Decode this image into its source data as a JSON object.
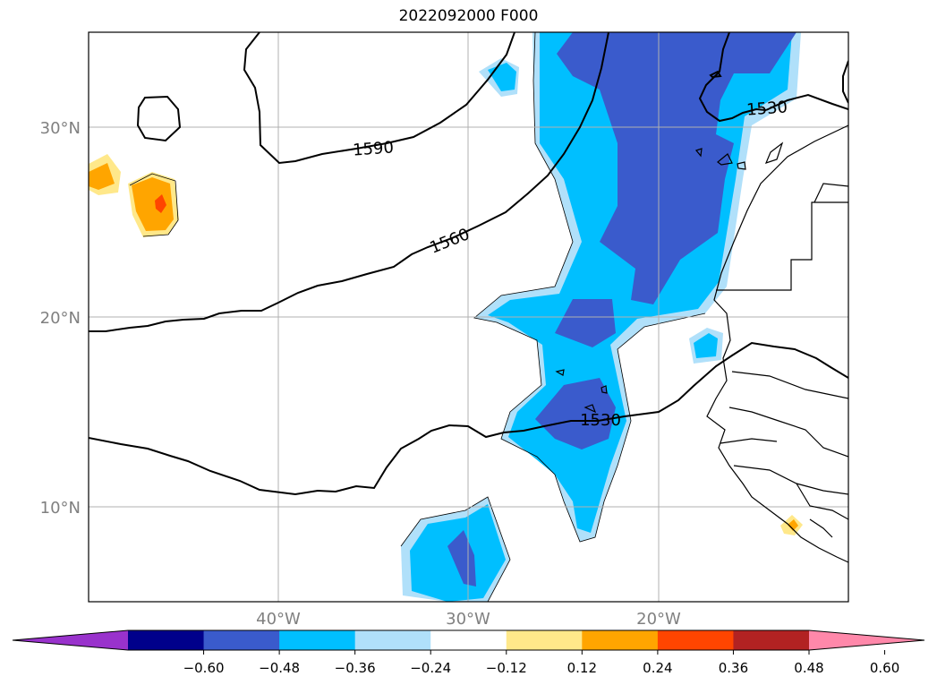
{
  "title": "2022092000 F000",
  "map": {
    "lat_ticks": [
      "30°N",
      "20°N",
      "10°N"
    ],
    "lon_ticks": [
      "40°W",
      "30°W",
      "20°W"
    ],
    "contour_labels": [
      "1590",
      "1560",
      "1530",
      "1530"
    ],
    "colors": {
      "land_outline": "#000000",
      "grid": "#b0b0b0",
      "tick_label": "#808080"
    }
  },
  "colorbar": {
    "tick_labels": [
      "−0.60",
      "−0.48",
      "−0.36",
      "−0.24",
      "−0.12",
      "0.12",
      "0.24",
      "0.36",
      "0.48",
      "0.60"
    ],
    "colors": [
      "#9932cc",
      "#00008b",
      "#3a5bcc",
      "#00bfff",
      "#b0e0fa",
      "#ffffff",
      "#ffe88a",
      "#ffa500",
      "#ff4500",
      "#b22222",
      "#ff88aa"
    ]
  }
}
